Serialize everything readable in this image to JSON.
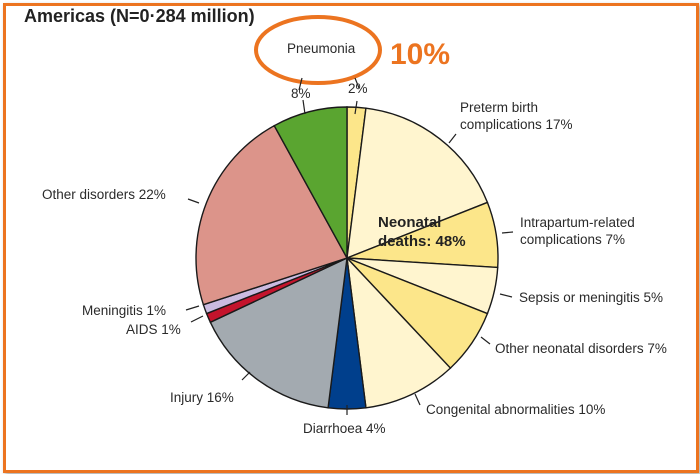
{
  "chart_data": {
    "type": "pie",
    "title": "Americas (N=0·284 million)",
    "annotation": "10%",
    "highlight_label": "Pneumonia",
    "center_label": [
      "Neonatal",
      "deaths: 48%"
    ],
    "start": "top",
    "direction": "clockwise",
    "slices": [
      {
        "name": "Pneumonia (neonatal)",
        "value": 2,
        "label": "2%",
        "color": "#fce68a"
      },
      {
        "name": "Preterm birth complications",
        "value": 17,
        "label": [
          "Preterm birth",
          "complications 17%"
        ],
        "color": "#fff5cf"
      },
      {
        "name": "Intrapartum-related complications",
        "value": 7,
        "label": [
          "Intrapartum-related",
          "complications 7%"
        ],
        "color": "#fce68a"
      },
      {
        "name": "Sepsis or meningitis",
        "value": 5,
        "label": "Sepsis or meningitis 5%",
        "color": "#fff5cf"
      },
      {
        "name": "Other neonatal disorders",
        "value": 7,
        "label": "Other neonatal disorders 7%",
        "color": "#fce68a"
      },
      {
        "name": "Congenital abnormalities",
        "value": 10,
        "label": "Congenital abnormalities 10%",
        "color": "#fff5cf"
      },
      {
        "name": "Diarrhoea",
        "value": 4,
        "label": "Diarrhoea 4%",
        "color": "#003f8c"
      },
      {
        "name": "Injury",
        "value": 16,
        "label": "Injury 16%",
        "color": "#a3aab0"
      },
      {
        "name": "AIDS",
        "value": 1,
        "label": "AIDS 1%",
        "color": "#c4142c"
      },
      {
        "name": "Meningitis",
        "value": 1,
        "label": "Meningitis 1%",
        "color": "#cbbbe0"
      },
      {
        "name": "Other disorders",
        "value": 22,
        "label": "Other disorders 22%",
        "color": "#dc948a"
      },
      {
        "name": "Pneumonia",
        "value": 8,
        "label": "8%",
        "color": "#5aa530"
      }
    ]
  }
}
